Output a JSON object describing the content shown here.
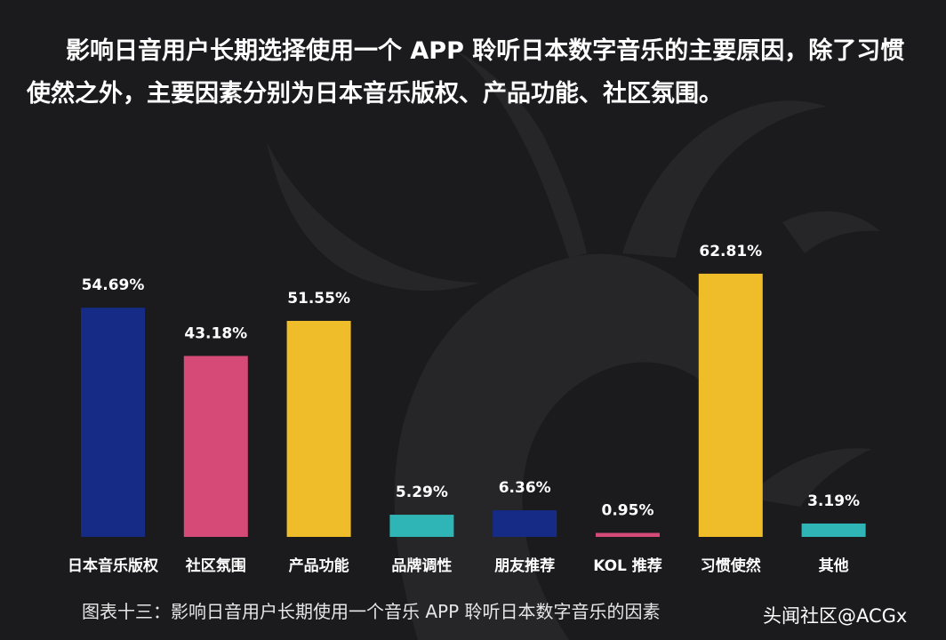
{
  "headline": "影响日音用户长期选择使用一个 APP 聆听日本数字音乐的主要原因，除了习惯使然之外，主要因素分别为日本音乐版权、产品功能、社区氛围。",
  "caption": "图表十三：影响日音用户长期使用一个音乐 APP 聆听日本数字音乐的因素",
  "watermark": "头闻社区@ACGx",
  "colors": {
    "background": "#1b1b1d",
    "text": "#ffffff"
  },
  "chart_data": {
    "type": "bar",
    "categories": [
      "日本音乐版权",
      "社区氛围",
      "产品功能",
      "品牌调性",
      "朋友推荐",
      "KOL 推荐",
      "习惯使然",
      "其他"
    ],
    "values": [
      54.69,
      43.18,
      51.55,
      5.29,
      6.36,
      0.95,
      62.81,
      3.19
    ],
    "data_labels": [
      "54.69%",
      "43.18%",
      "51.55%",
      "5.29%",
      "6.36%",
      "0.95%",
      "62.81%",
      "3.19%"
    ],
    "colors": [
      "#152b85",
      "#d64a78",
      "#f0bd2a",
      "#2fb5b5",
      "#152b85",
      "#d64a78",
      "#f0bd2a",
      "#2fb5b5"
    ],
    "unit": "%",
    "ylim": [
      0,
      70
    ],
    "grid": false,
    "legend": "none"
  }
}
